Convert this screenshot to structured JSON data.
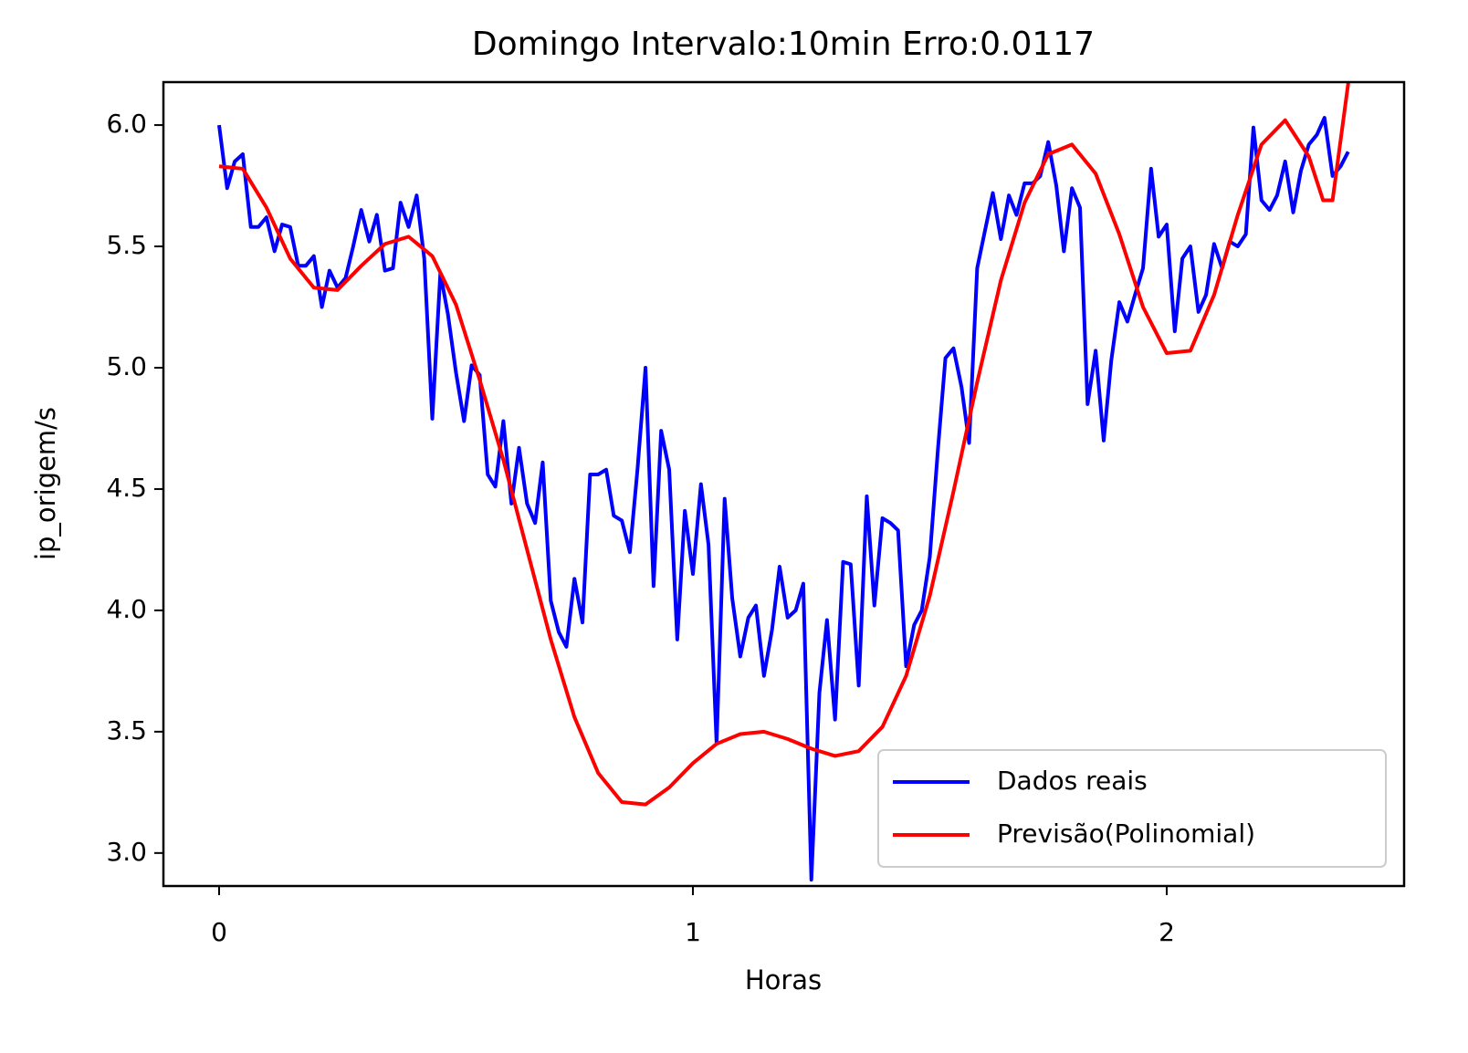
{
  "chart_data": {
    "type": "line",
    "title": "Domingo Intervalo:10min Erro:0.0117",
    "x_label": "Horas",
    "y_label": "ip_origem/s",
    "xlim": [
      -0.1175,
      2.501
    ],
    "ylim": [
      2.864,
      6.177
    ],
    "xticks": [
      0,
      1,
      2
    ],
    "yticks": [
      {
        "value": 3,
        "label": "3.0"
      },
      3.5,
      {
        "value": 4,
        "label": "4.0"
      },
      4.5,
      {
        "value": 5,
        "label": "5.0"
      },
      5.5,
      {
        "value": 6,
        "label": "6.0"
      }
    ],
    "grid": false,
    "legend": "lower right",
    "series": [
      {
        "name": "Dados reais",
        "color": "#0000ff",
        "x": [
          0,
          0.017,
          0.033,
          0.05,
          0.067,
          0.083,
          0.1,
          0.117,
          0.133,
          0.15,
          0.167,
          0.183,
          0.2,
          0.217,
          0.233,
          0.25,
          0.267,
          0.283,
          0.3,
          0.317,
          0.333,
          0.35,
          0.367,
          0.383,
          0.4,
          0.417,
          0.433,
          0.45,
          0.467,
          0.483,
          0.5,
          0.517,
          0.533,
          0.55,
          0.567,
          0.583,
          0.6,
          0.617,
          0.633,
          0.65,
          0.667,
          0.683,
          0.7,
          0.717,
          0.733,
          0.75,
          0.767,
          0.783,
          0.8,
          0.817,
          0.833,
          0.85,
          0.867,
          0.883,
          0.9,
          0.917,
          0.933,
          0.95,
          0.967,
          0.983,
          1.0,
          1.017,
          1.033,
          1.05,
          1.067,
          1.083,
          1.1,
          1.117,
          1.133,
          1.15,
          1.167,
          1.183,
          1.2,
          1.217,
          1.233,
          1.25,
          1.267,
          1.283,
          1.3,
          1.317,
          1.333,
          1.35,
          1.367,
          1.383,
          1.4,
          1.417,
          1.433,
          1.45,
          1.467,
          1.483,
          1.5,
          1.517,
          1.533,
          1.55,
          1.567,
          1.583,
          1.6,
          1.617,
          1.633,
          1.65,
          1.667,
          1.683,
          1.7,
          1.717,
          1.733,
          1.75,
          1.767,
          1.783,
          1.8,
          1.817,
          1.833,
          1.85,
          1.867,
          1.883,
          1.9,
          1.917,
          1.933,
          1.95,
          1.967,
          1.983,
          2.0,
          2.017,
          2.033,
          2.05,
          2.067,
          2.083,
          2.1,
          2.117,
          2.133,
          2.15,
          2.167,
          2.183,
          2.2,
          2.217,
          2.233,
          2.25,
          2.267,
          2.283,
          2.3,
          2.317,
          2.333,
          2.35,
          2.367,
          2.383
        ],
        "values": [
          6.0,
          5.74,
          5.85,
          5.88,
          5.58,
          5.58,
          5.62,
          5.48,
          5.59,
          5.58,
          5.42,
          5.42,
          5.46,
          5.25,
          5.4,
          5.33,
          5.37,
          5.5,
          5.65,
          5.52,
          5.63,
          5.4,
          5.41,
          5.68,
          5.58,
          5.71,
          5.45,
          4.79,
          5.39,
          5.22,
          4.98,
          4.78,
          5.01,
          4.97,
          4.56,
          4.51,
          4.78,
          4.44,
          4.67,
          4.44,
          4.36,
          4.61,
          4.04,
          3.91,
          3.85,
          4.13,
          3.95,
          4.56,
          4.56,
          4.58,
          4.39,
          4.37,
          4.24,
          4.58,
          5.0,
          4.1,
          4.74,
          4.58,
          3.88,
          4.41,
          4.15,
          4.52,
          4.27,
          3.45,
          4.46,
          4.05,
          3.81,
          3.97,
          4.02,
          3.73,
          3.92,
          4.18,
          3.97,
          4.0,
          4.11,
          2.89,
          3.66,
          3.96,
          3.55,
          4.2,
          4.19,
          3.69,
          4.47,
          4.02,
          4.38,
          4.36,
          4.33,
          3.77,
          3.94,
          4.0,
          4.22,
          4.66,
          5.04,
          5.08,
          4.92,
          4.69,
          5.41,
          5.57,
          5.72,
          5.53,
          5.71,
          5.63,
          5.76,
          5.76,
          5.79,
          5.93,
          5.75,
          5.48,
          5.74,
          5.66,
          4.85,
          5.07,
          4.7,
          5.03,
          5.27,
          5.19,
          5.3,
          5.41,
          5.82,
          5.54,
          5.59,
          5.15,
          5.45,
          5.5,
          5.23,
          5.3,
          5.51,
          5.41,
          5.52,
          5.5,
          5.55,
          5.99,
          5.69,
          5.65,
          5.71,
          5.85,
          5.64,
          5.81,
          5.92,
          5.96,
          6.03,
          5.79,
          5.83,
          5.89
        ]
      },
      {
        "name": "Previsão(Polinomial)",
        "color": "#ff0000",
        "x": [
          0,
          0.05,
          0.1,
          0.15,
          0.2,
          0.25,
          0.3,
          0.35,
          0.4,
          0.45,
          0.5,
          0.55,
          0.6,
          0.65,
          0.7,
          0.75,
          0.8,
          0.85,
          0.9,
          0.95,
          1.0,
          1.05,
          1.1,
          1.15,
          1.2,
          1.25,
          1.3,
          1.35,
          1.4,
          1.45,
          1.5,
          1.55,
          1.6,
          1.65,
          1.7,
          1.75,
          1.8,
          1.85,
          1.9,
          1.95,
          2.0,
          2.05,
          2.1,
          2.15,
          2.2,
          2.25,
          2.3,
          2.33,
          2.35,
          2.385
        ],
        "values": [
          5.83,
          5.82,
          5.66,
          5.45,
          5.33,
          5.32,
          5.42,
          5.51,
          5.54,
          5.46,
          5.26,
          4.95,
          4.62,
          4.25,
          3.88,
          3.56,
          3.33,
          3.21,
          3.2,
          3.27,
          3.37,
          3.45,
          3.49,
          3.5,
          3.47,
          3.43,
          3.4,
          3.42,
          3.52,
          3.73,
          4.06,
          4.49,
          4.94,
          5.36,
          5.68,
          5.88,
          5.92,
          5.8,
          5.55,
          5.25,
          5.06,
          5.07,
          5.3,
          5.63,
          5.92,
          6.02,
          5.87,
          5.69,
          5.69,
          6.2
        ]
      }
    ]
  }
}
